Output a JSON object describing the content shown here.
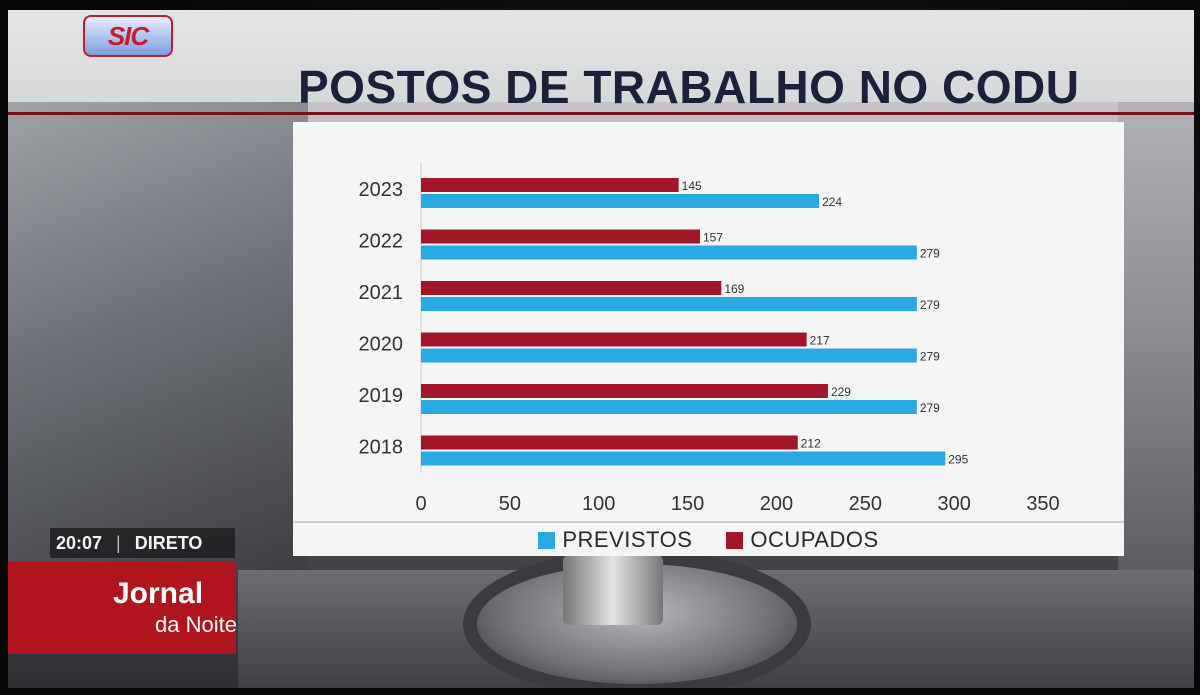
{
  "broadcast": {
    "channel_logo": "SIC",
    "time": "20:07",
    "separator": "|",
    "live_label": "DIRETO",
    "program_line1": "Jornal",
    "program_line2": "da Noite"
  },
  "colors": {
    "ocupados": "#a3162a",
    "previstos": "#29a9e1",
    "headline": "#1e1f3b",
    "program_bg": "#b0141d"
  },
  "chart_data": {
    "type": "bar",
    "orientation": "horizontal",
    "title": "POSTOS DE TRABALHO NO CODU",
    "categories": [
      "2023",
      "2022",
      "2021",
      "2020",
      "2019",
      "2018"
    ],
    "series": [
      {
        "name": "OCUPADOS",
        "values": [
          145,
          157,
          169,
          217,
          229,
          212
        ]
      },
      {
        "name": "PREVISTOS",
        "values": [
          224,
          279,
          279,
          279,
          279,
          295
        ]
      }
    ],
    "x_ticks": [
      "0",
      "50",
      "100",
      "150",
      "200",
      "250",
      "300",
      "350"
    ],
    "xlim": [
      0,
      350
    ],
    "grid": false,
    "legend_position": "bottom",
    "legend": [
      {
        "name": "PREVISTOS",
        "color": "#29a9e1"
      },
      {
        "name": "OCUPADOS",
        "color": "#a3162a"
      }
    ]
  }
}
